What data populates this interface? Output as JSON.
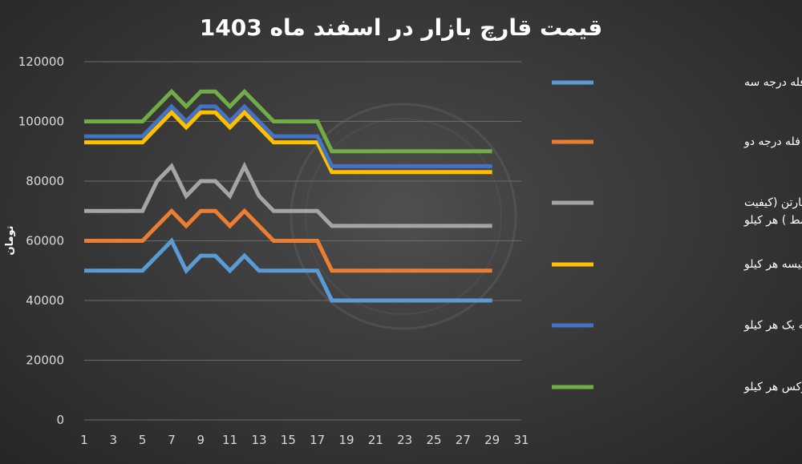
{
  "chart_data": {
    "type": "line",
    "title": "قیمت قارچ بازار در اسفند ماه 1403",
    "ylabel": "تومان",
    "xlabel": "",
    "xlim": [
      1,
      31
    ],
    "ylim": [
      0,
      120000
    ],
    "x_ticks": [
      "1",
      "3",
      "5",
      "7",
      "9",
      "11",
      "13",
      "15",
      "17",
      "19",
      "21",
      "23",
      "25",
      "27",
      "29",
      "31"
    ],
    "y_ticks": [
      "0",
      "20000",
      "40000",
      "60000",
      "80000",
      "100000",
      "120000"
    ],
    "grid": true,
    "legend_position": "right",
    "x": [
      1,
      2,
      3,
      4,
      5,
      6,
      7,
      8,
      9,
      10,
      11,
      12,
      13,
      14,
      15,
      16,
      17,
      18,
      19,
      20,
      21,
      22,
      23,
      24,
      25,
      26,
      27,
      28,
      29
    ],
    "series": [
      {
        "name": "قارچ فله درجه سه",
        "color": "#5b9bd5",
        "values": [
          50000,
          50000,
          50000,
          50000,
          50000,
          55000,
          60000,
          50000,
          55000,
          55000,
          50000,
          55000,
          50000,
          50000,
          50000,
          50000,
          50000,
          40000,
          40000,
          40000,
          40000,
          40000,
          40000,
          40000,
          40000,
          40000,
          40000,
          40000,
          40000
        ]
      },
      {
        "name": "قارچ فله درجه دو",
        "color": "#ed7d31",
        "values": [
          60000,
          60000,
          60000,
          60000,
          60000,
          65000,
          70000,
          65000,
          70000,
          70000,
          65000,
          70000,
          65000,
          60000,
          60000,
          60000,
          60000,
          50000,
          50000,
          50000,
          50000,
          50000,
          50000,
          50000,
          50000,
          50000,
          50000,
          50000,
          50000
        ]
      },
      {
        "name": "قارچ فله در سبد و کیسه و کارتن (کیفیت متوسط ) هر کیلو",
        "legend_lines": [
          "قارچ فله در سبد و کیسه و کارتن (کیفیت",
          "متوسط ) هر کیلو"
        ],
        "color": "#a5a5a5",
        "values": [
          70000,
          70000,
          70000,
          70000,
          70000,
          80000,
          85000,
          75000,
          80000,
          80000,
          75000,
          85000,
          75000,
          70000,
          70000,
          70000,
          70000,
          65000,
          65000,
          65000,
          65000,
          65000,
          65000,
          65000,
          65000,
          65000,
          65000,
          65000,
          65000
        ]
      },
      {
        "name": "قارچ فله در کیسه هر کیلو",
        "color": "#ffc000",
        "values": [
          93000,
          93000,
          93000,
          93000,
          93000,
          98000,
          103000,
          98000,
          103000,
          103000,
          98000,
          103000,
          98000,
          93000,
          93000,
          93000,
          93000,
          83000,
          83000,
          83000,
          83000,
          83000,
          83000,
          83000,
          83000,
          83000,
          83000,
          83000,
          83000
        ]
      },
      {
        "name": "قارچ فله سبد درجه یک هر کیلو",
        "color": "#4472c4",
        "values": [
          95000,
          95000,
          95000,
          95000,
          95000,
          100000,
          105000,
          100000,
          105000,
          105000,
          100000,
          105000,
          100000,
          95000,
          95000,
          95000,
          95000,
          85000,
          85000,
          85000,
          85000,
          85000,
          85000,
          85000,
          85000,
          85000,
          85000,
          85000,
          85000
        ]
      },
      {
        "name": "قارچ فله در سبد لوکس هر کیلو",
        "color": "#70ad47",
        "values": [
          100000,
          100000,
          100000,
          100000,
          100000,
          105000,
          110000,
          105000,
          110000,
          110000,
          105000,
          110000,
          105000,
          100000,
          100000,
          100000,
          100000,
          90000,
          90000,
          90000,
          90000,
          90000,
          90000,
          90000,
          90000,
          90000,
          90000,
          90000,
          90000
        ]
      }
    ]
  }
}
